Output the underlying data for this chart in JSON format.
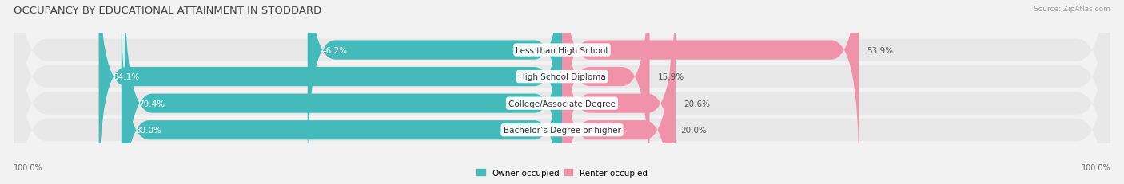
{
  "title": "OCCUPANCY BY EDUCATIONAL ATTAINMENT IN STODDARD",
  "source": "Source: ZipAtlas.com",
  "categories": [
    "Less than High School",
    "High School Diploma",
    "College/Associate Degree",
    "Bachelor’s Degree or higher"
  ],
  "owner_pct": [
    46.2,
    84.1,
    79.4,
    80.0
  ],
  "renter_pct": [
    53.9,
    15.9,
    20.6,
    20.0
  ],
  "owner_color": "#45BABA",
  "renter_color": "#F093AA",
  "bg_color": "#f2f2f2",
  "row_bg_color": "#e8e8e8",
  "title_fontsize": 9.5,
  "cat_fontsize": 7.5,
  "pct_fontsize": 7.5,
  "tick_fontsize": 7.0,
  "legend_fontsize": 7.5
}
